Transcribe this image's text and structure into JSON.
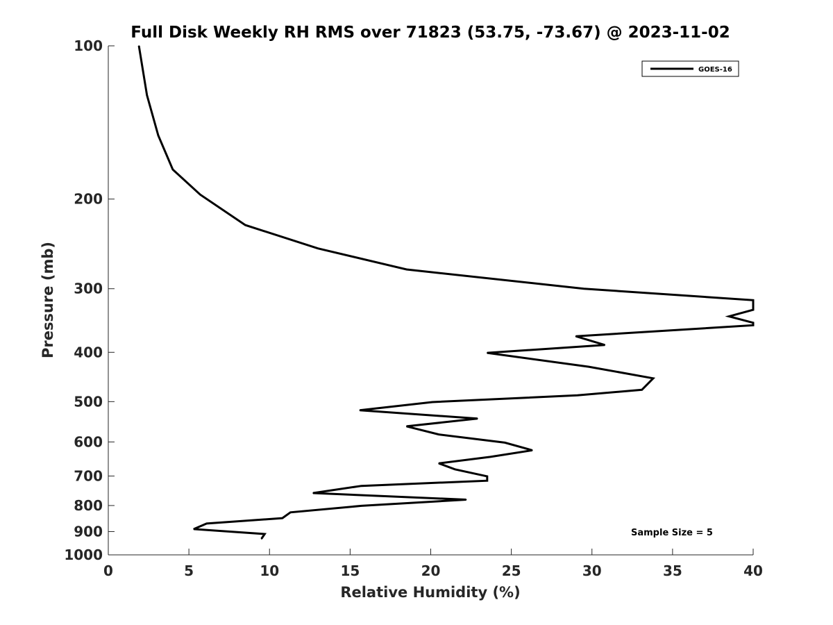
{
  "chart_data": {
    "type": "line",
    "title": "Full Disk Weekly RH RMS over 71823 (53.75, -73.67) @ 2023-11-02",
    "xlabel": "Relative Humidity (%)",
    "ylabel": "Pressure (mb)",
    "xlim": [
      0,
      40
    ],
    "ylim": [
      100,
      1000
    ],
    "y_scale": "log",
    "y_reversed": true,
    "x_ticks": [
      0,
      5,
      10,
      15,
      20,
      25,
      30,
      35,
      40
    ],
    "y_ticks": [
      100,
      200,
      300,
      400,
      500,
      600,
      700,
      800,
      900,
      1000
    ],
    "grid": false,
    "legend_position": "top-right",
    "annotation": "Sample Size = 5",
    "series": [
      {
        "name": "GOES-16",
        "color": "#000000",
        "points": [
          [
            1.9,
            100
          ],
          [
            2.4,
            125
          ],
          [
            3.1,
            150
          ],
          [
            4.0,
            175
          ],
          [
            5.7,
            196
          ],
          [
            8.5,
            225
          ],
          [
            13.0,
            250
          ],
          [
            18.5,
            275
          ],
          [
            29.5,
            300
          ],
          [
            40.0,
            316
          ],
          [
            40.0,
            330
          ],
          [
            38.5,
            340
          ],
          [
            40.0,
            350
          ],
          [
            40.0,
            354
          ],
          [
            29.0,
            372
          ],
          [
            30.8,
            387
          ],
          [
            23.5,
            401
          ],
          [
            29.8,
            427
          ],
          [
            33.8,
            450
          ],
          [
            33.1,
            474
          ],
          [
            29.1,
            486
          ],
          [
            20.1,
            501
          ],
          [
            15.6,
            520
          ],
          [
            22.9,
            540
          ],
          [
            18.5,
            559
          ],
          [
            20.5,
            580
          ],
          [
            24.6,
            602
          ],
          [
            26.3,
            623
          ],
          [
            23.7,
            642
          ],
          [
            20.5,
            661
          ],
          [
            21.5,
            679
          ],
          [
            23.5,
            701
          ],
          [
            23.5,
            715
          ],
          [
            15.7,
            732
          ],
          [
            12.7,
            756
          ],
          [
            22.2,
            779
          ],
          [
            15.7,
            801
          ],
          [
            11.3,
            825
          ],
          [
            10.8,
            847
          ],
          [
            6.1,
            868
          ],
          [
            5.3,
            890
          ],
          [
            9.7,
            910
          ],
          [
            9.5,
            930
          ]
        ]
      }
    ]
  }
}
